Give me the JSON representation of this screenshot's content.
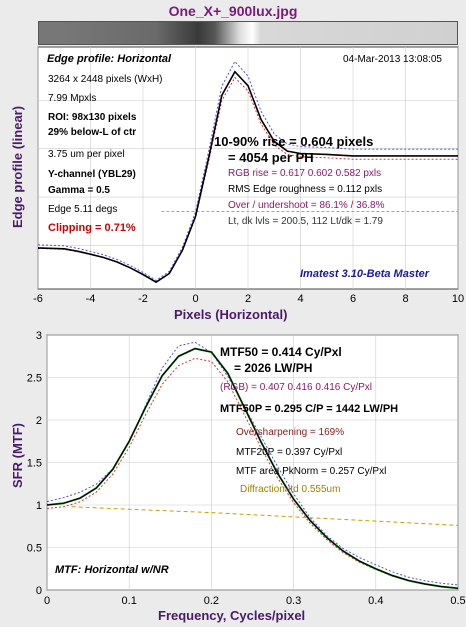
{
  "window_title": "One_X+_900lux.jpg",
  "colors": {
    "title": "#7a1a7a",
    "axis_label": "#4a1a6a",
    "rgb_text": "#8b1a6b",
    "clip_red": "#d00000",
    "imatest_blue": "#1a1aa0",
    "diffraction": "#c8a000"
  },
  "top": {
    "panel_title": "Edge profile: Horizontal",
    "datetime": "04-Mar-2013 13:08:05",
    "info_lines": [
      "3264 x 2448 pixels (WxH)",
      "7.99 Mpxls"
    ],
    "roi_lines": [
      "ROI:  98x130 pixels",
      "29% below-L of ctr"
    ],
    "um_per_pixel": "3.75 um per pixel",
    "channel_lines": [
      "Y-channel  (YBL29)",
      "Gamma = 0.5"
    ],
    "edge_angle": "Edge 5.11 degs",
    "clipping": "Clipping =  0.71%",
    "rise_1": "10-90% rise = 0.604 pixels",
    "rise_2": "= 4054 per PH",
    "rgb_rise": "RGB rise = 0.617  0.602  0.582 pxls",
    "rms": "RMS Edge roughness = 0.112 pxls",
    "overshoot": "Over / undershoot = 86.1% / 36.8%",
    "levels": "Lt, dk lvls = 200.5, 112   Lt/dk = 1.79",
    "imatest": "Imatest 3.10-Beta Master"
  },
  "bottom": {
    "mtf50_1": "MTF50 = 0.414 Cy/Pxl",
    "mtf50_2": "= 2026 LW/PH",
    "rgb_mtf": "(RGB) = 0.407  0.416  0.416 Cy/Pxl",
    "mtf50p": "MTF50P = 0.295 C/P = 1442 LW/PH",
    "oversharpening": "Oversharpening = 169%",
    "mtf20p": "MTF20P = 0.397 Cy/Pxl",
    "pknorm": "MTF area PkNorm = 0.257 Cy/Pxl",
    "diffraction": "Diffraction-ltd  0.555um",
    "panel_title": "MTF: Horizontal w/NR"
  },
  "chart_data": [
    {
      "type": "line",
      "xlabel": "Pixels (Horizontal)",
      "ylabel": "Edge profile (linear)",
      "xlim": [
        -6,
        10
      ],
      "x_ticks": [
        "-6",
        "-4",
        "-2",
        "0",
        "2",
        "4",
        "6",
        "8",
        "10"
      ],
      "series": [
        {
          "x": [
            -6,
            -5,
            -4.5,
            -4,
            -3.5,
            -3,
            -2.5,
            -2,
            -1.5,
            -1,
            -0.5,
            0,
            0.5,
            1,
            1.5,
            2,
            2.5,
            3,
            3.5,
            4,
            5,
            6,
            7,
            8,
            9,
            10
          ],
          "y": [
            0.35,
            0.33,
            0.28,
            0.22,
            0.15,
            0.06,
            -0.06,
            -0.2,
            -0.36,
            -0.18,
            0.3,
            1.0,
            2.2,
            3.5,
            3.99,
            3.7,
            3.0,
            2.55,
            2.35,
            2.3,
            2.28,
            2.25,
            2.25,
            2.25,
            2.25,
            2.25
          ]
        }
      ]
    },
    {
      "type": "line",
      "xlabel": "Frequency, Cycles/pixel",
      "ylabel": "SFR (MTF)",
      "xlim": [
        0,
        0.5
      ],
      "ylim": [
        0,
        3
      ],
      "x_ticks": [
        "0",
        "0.1",
        "0.2",
        "0.3",
        "0.4",
        "0.5"
      ],
      "y_ticks": [
        "0",
        "0.5",
        "1",
        "1.5",
        "2",
        "2.5",
        "3"
      ],
      "series": [
        {
          "x": [
            0,
            0.02,
            0.04,
            0.06,
            0.08,
            0.1,
            0.12,
            0.14,
            0.16,
            0.18,
            0.2,
            0.22,
            0.24,
            0.26,
            0.28,
            0.3,
            0.32,
            0.34,
            0.36,
            0.38,
            0.4,
            0.42,
            0.44,
            0.46,
            0.48,
            0.5
          ],
          "y": [
            1.0,
            1.02,
            1.08,
            1.2,
            1.42,
            1.75,
            2.15,
            2.52,
            2.75,
            2.84,
            2.8,
            2.55,
            2.15,
            1.75,
            1.38,
            1.07,
            0.82,
            0.62,
            0.46,
            0.34,
            0.25,
            0.17,
            0.11,
            0.07,
            0.04,
            0.02
          ]
        },
        {
          "name": "Diffraction-ltd  0.555um",
          "x": [
            0.03,
            0.1,
            0.2,
            0.3,
            0.4,
            0.5
          ],
          "y": [
            0.98,
            0.95,
            0.91,
            0.86,
            0.81,
            0.76
          ]
        }
      ]
    }
  ]
}
